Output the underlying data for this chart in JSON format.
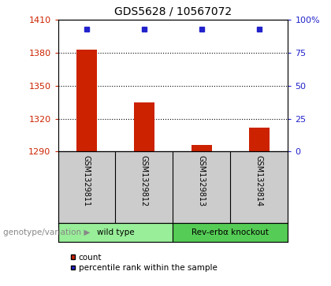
{
  "title": "GDS5628 / 10567072",
  "samples": [
    "GSM1329811",
    "GSM1329812",
    "GSM1329813",
    "GSM1329814"
  ],
  "counts": [
    1383,
    1335,
    1296,
    1312
  ],
  "percentile_ranks": [
    93,
    93,
    93,
    93
  ],
  "ylim_left": [
    1290,
    1410
  ],
  "yticks_left": [
    1290,
    1320,
    1350,
    1380,
    1410
  ],
  "ylim_right": [
    0,
    100
  ],
  "yticks_right": [
    0,
    25,
    50,
    75,
    100
  ],
  "yticklabels_right": [
    "0",
    "25",
    "50",
    "75",
    "100%"
  ],
  "bar_color": "#cc2200",
  "dot_color": "#2222cc",
  "bar_width": 0.35,
  "groups": [
    {
      "label": "wild type",
      "samples": [
        "GSM1329811",
        "GSM1329812"
      ],
      "color": "#99ee99"
    },
    {
      "label": "Rev-erbα knockout",
      "samples": [
        "GSM1329813",
        "GSM1329814"
      ],
      "color": "#55cc55"
    }
  ],
  "group_label_prefix": "genotype/variation",
  "legend_count_label": "count",
  "legend_pct_label": "percentile rank within the sample",
  "tick_color_left": "#cc2200",
  "tick_color_right": "#2222cc",
  "bg_color_plot": "#ffffff",
  "bg_color_sample_row": "#cccccc",
  "dotted_grid_color": "#000000"
}
